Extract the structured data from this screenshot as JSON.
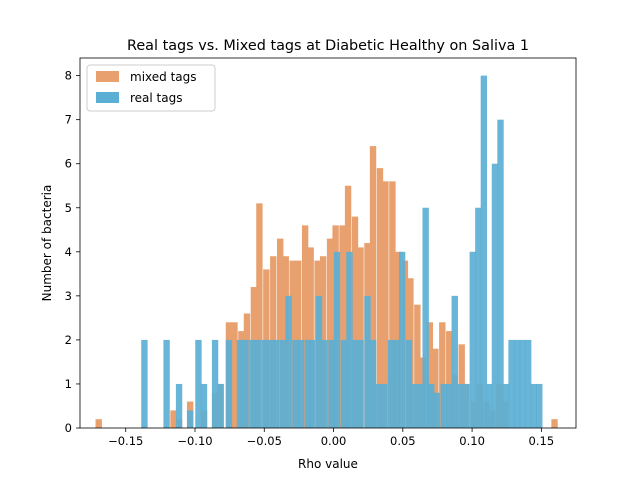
{
  "chart_data": {
    "type": "bar",
    "title": "Real tags vs. Mixed tags at Diabetic Healthy on Saliva 1",
    "xlabel": "Rho value",
    "ylabel": "Number of bacteria",
    "xlim": [
      -0.183,
      0.175
    ],
    "ylim": [
      0,
      8.4
    ],
    "bar_width": 0.0046,
    "xticks": [
      -0.15,
      -0.1,
      -0.05,
      0.0,
      0.05,
      0.1,
      0.15
    ],
    "xtick_labels": [
      "−0.15",
      "−0.10",
      "−0.05",
      "0.00",
      "0.05",
      "0.10",
      "0.15"
    ],
    "yticks": [
      0,
      1,
      2,
      3,
      4,
      5,
      6,
      7,
      8
    ],
    "ytick_labels": [
      "0",
      "1",
      "2",
      "3",
      "4",
      "5",
      "6",
      "7",
      "8"
    ],
    "grid": false,
    "legend_position": "top-left",
    "series": [
      {
        "name": "mixed tags",
        "color": "#e8a06e",
        "points": [
          [
            -0.1695,
            0.2
          ],
          [
            -0.1155,
            0.4
          ],
          [
            -0.1115,
            0.2
          ],
          [
            -0.1035,
            0.6
          ],
          [
            -0.0935,
            0.4
          ],
          [
            -0.0855,
            0.8
          ],
          [
            -0.0815,
            1.0
          ],
          [
            -0.0755,
            2.4
          ],
          [
            -0.0715,
            2.4
          ],
          [
            -0.0665,
            2.2
          ],
          [
            -0.0625,
            2.6
          ],
          [
            -0.0575,
            3.2
          ],
          [
            -0.0535,
            5.1
          ],
          [
            -0.0485,
            3.6
          ],
          [
            -0.0435,
            3.9
          ],
          [
            -0.0385,
            4.3
          ],
          [
            -0.0345,
            3.9
          ],
          [
            -0.0295,
            3.8
          ],
          [
            -0.0255,
            3.8
          ],
          [
            -0.0205,
            4.6
          ],
          [
            -0.0165,
            4.1
          ],
          [
            -0.0115,
            3.8
          ],
          [
            -0.0075,
            3.9
          ],
          [
            -0.0025,
            4.3
          ],
          [
            0.0015,
            4.6
          ],
          [
            0.0065,
            4.6
          ],
          [
            0.0105,
            5.5
          ],
          [
            0.0155,
            4.8
          ],
          [
            0.0195,
            4.1
          ],
          [
            0.0245,
            4.2
          ],
          [
            0.0285,
            6.4
          ],
          [
            0.0335,
            5.9
          ],
          [
            0.0375,
            5.6
          ],
          [
            0.0425,
            5.6
          ],
          [
            0.0465,
            4.0
          ],
          [
            0.0515,
            3.8
          ],
          [
            0.0555,
            3.4
          ],
          [
            0.0605,
            2.8
          ],
          [
            0.0645,
            1.6
          ],
          [
            0.0695,
            2.4
          ],
          [
            0.0735,
            1.8
          ],
          [
            0.0785,
            2.4
          ],
          [
            0.0835,
            2.2
          ],
          [
            0.0875,
            1.2
          ],
          [
            0.0925,
            1.9
          ],
          [
            0.0965,
            1.0
          ],
          [
            0.1015,
            0.6
          ],
          [
            0.1055,
            1.0
          ],
          [
            0.1105,
            0.6
          ],
          [
            0.1145,
            0.4
          ],
          [
            0.1195,
            1.0
          ],
          [
            0.1235,
            0.6
          ],
          [
            0.1595,
            0.2
          ]
        ]
      },
      {
        "name": "real tags",
        "color": "#5bafd4",
        "points": [
          [
            -0.1365,
            2.0
          ],
          [
            -0.1205,
            2.0
          ],
          [
            -0.1115,
            1.0
          ],
          [
            -0.1035,
            0.4
          ],
          [
            -0.0975,
            2.0
          ],
          [
            -0.0935,
            1.0
          ],
          [
            -0.0855,
            2.0
          ],
          [
            -0.0815,
            1.0
          ],
          [
            -0.0755,
            2.0
          ],
          [
            -0.0675,
            2.0
          ],
          [
            -0.0635,
            2.0
          ],
          [
            -0.0585,
            2.0
          ],
          [
            -0.0545,
            2.0
          ],
          [
            -0.0495,
            2.0
          ],
          [
            -0.0455,
            2.0
          ],
          [
            -0.0415,
            2.0
          ],
          [
            -0.0365,
            2.0
          ],
          [
            -0.0325,
            3.0
          ],
          [
            -0.0275,
            2.0
          ],
          [
            -0.0235,
            2.0
          ],
          [
            -0.0185,
            2.0
          ],
          [
            -0.0155,
            2.0
          ],
          [
            -0.0105,
            3.0
          ],
          [
            -0.0065,
            2.0
          ],
          [
            -0.0015,
            2.0
          ],
          [
            0.0025,
            4.0
          ],
          [
            0.0075,
            2.0
          ],
          [
            0.0115,
            4.0
          ],
          [
            0.0155,
            2.0
          ],
          [
            0.0195,
            2.0
          ],
          [
            0.0245,
            3.0
          ],
          [
            0.0285,
            2.0
          ],
          [
            0.0325,
            1.0
          ],
          [
            0.0365,
            1.0
          ],
          [
            0.0415,
            2.0
          ],
          [
            0.0455,
            2.0
          ],
          [
            0.0495,
            4.0
          ],
          [
            0.0545,
            2.0
          ],
          [
            0.0585,
            1.0
          ],
          [
            0.0625,
            1.0
          ],
          [
            0.0665,
            5.0
          ],
          [
            0.0705,
            1.0
          ],
          [
            0.0745,
            0.8
          ],
          [
            0.0795,
            1.0
          ],
          [
            0.0835,
            1.0
          ],
          [
            0.0875,
            3.0
          ],
          [
            0.0915,
            1.0
          ],
          [
            0.0955,
            1.0
          ],
          [
            0.1005,
            4.0
          ],
          [
            0.1045,
            5.0
          ],
          [
            0.1085,
            8.0
          ],
          [
            0.1125,
            1.0
          ],
          [
            0.1165,
            6.0
          ],
          [
            0.1205,
            7.0
          ],
          [
            0.1245,
            1.0
          ],
          [
            0.1285,
            2.0
          ],
          [
            0.1325,
            2.0
          ],
          [
            0.1365,
            2.0
          ],
          [
            0.1405,
            2.0
          ],
          [
            0.1445,
            1.0
          ],
          [
            0.1485,
            1.0
          ]
        ]
      }
    ]
  }
}
